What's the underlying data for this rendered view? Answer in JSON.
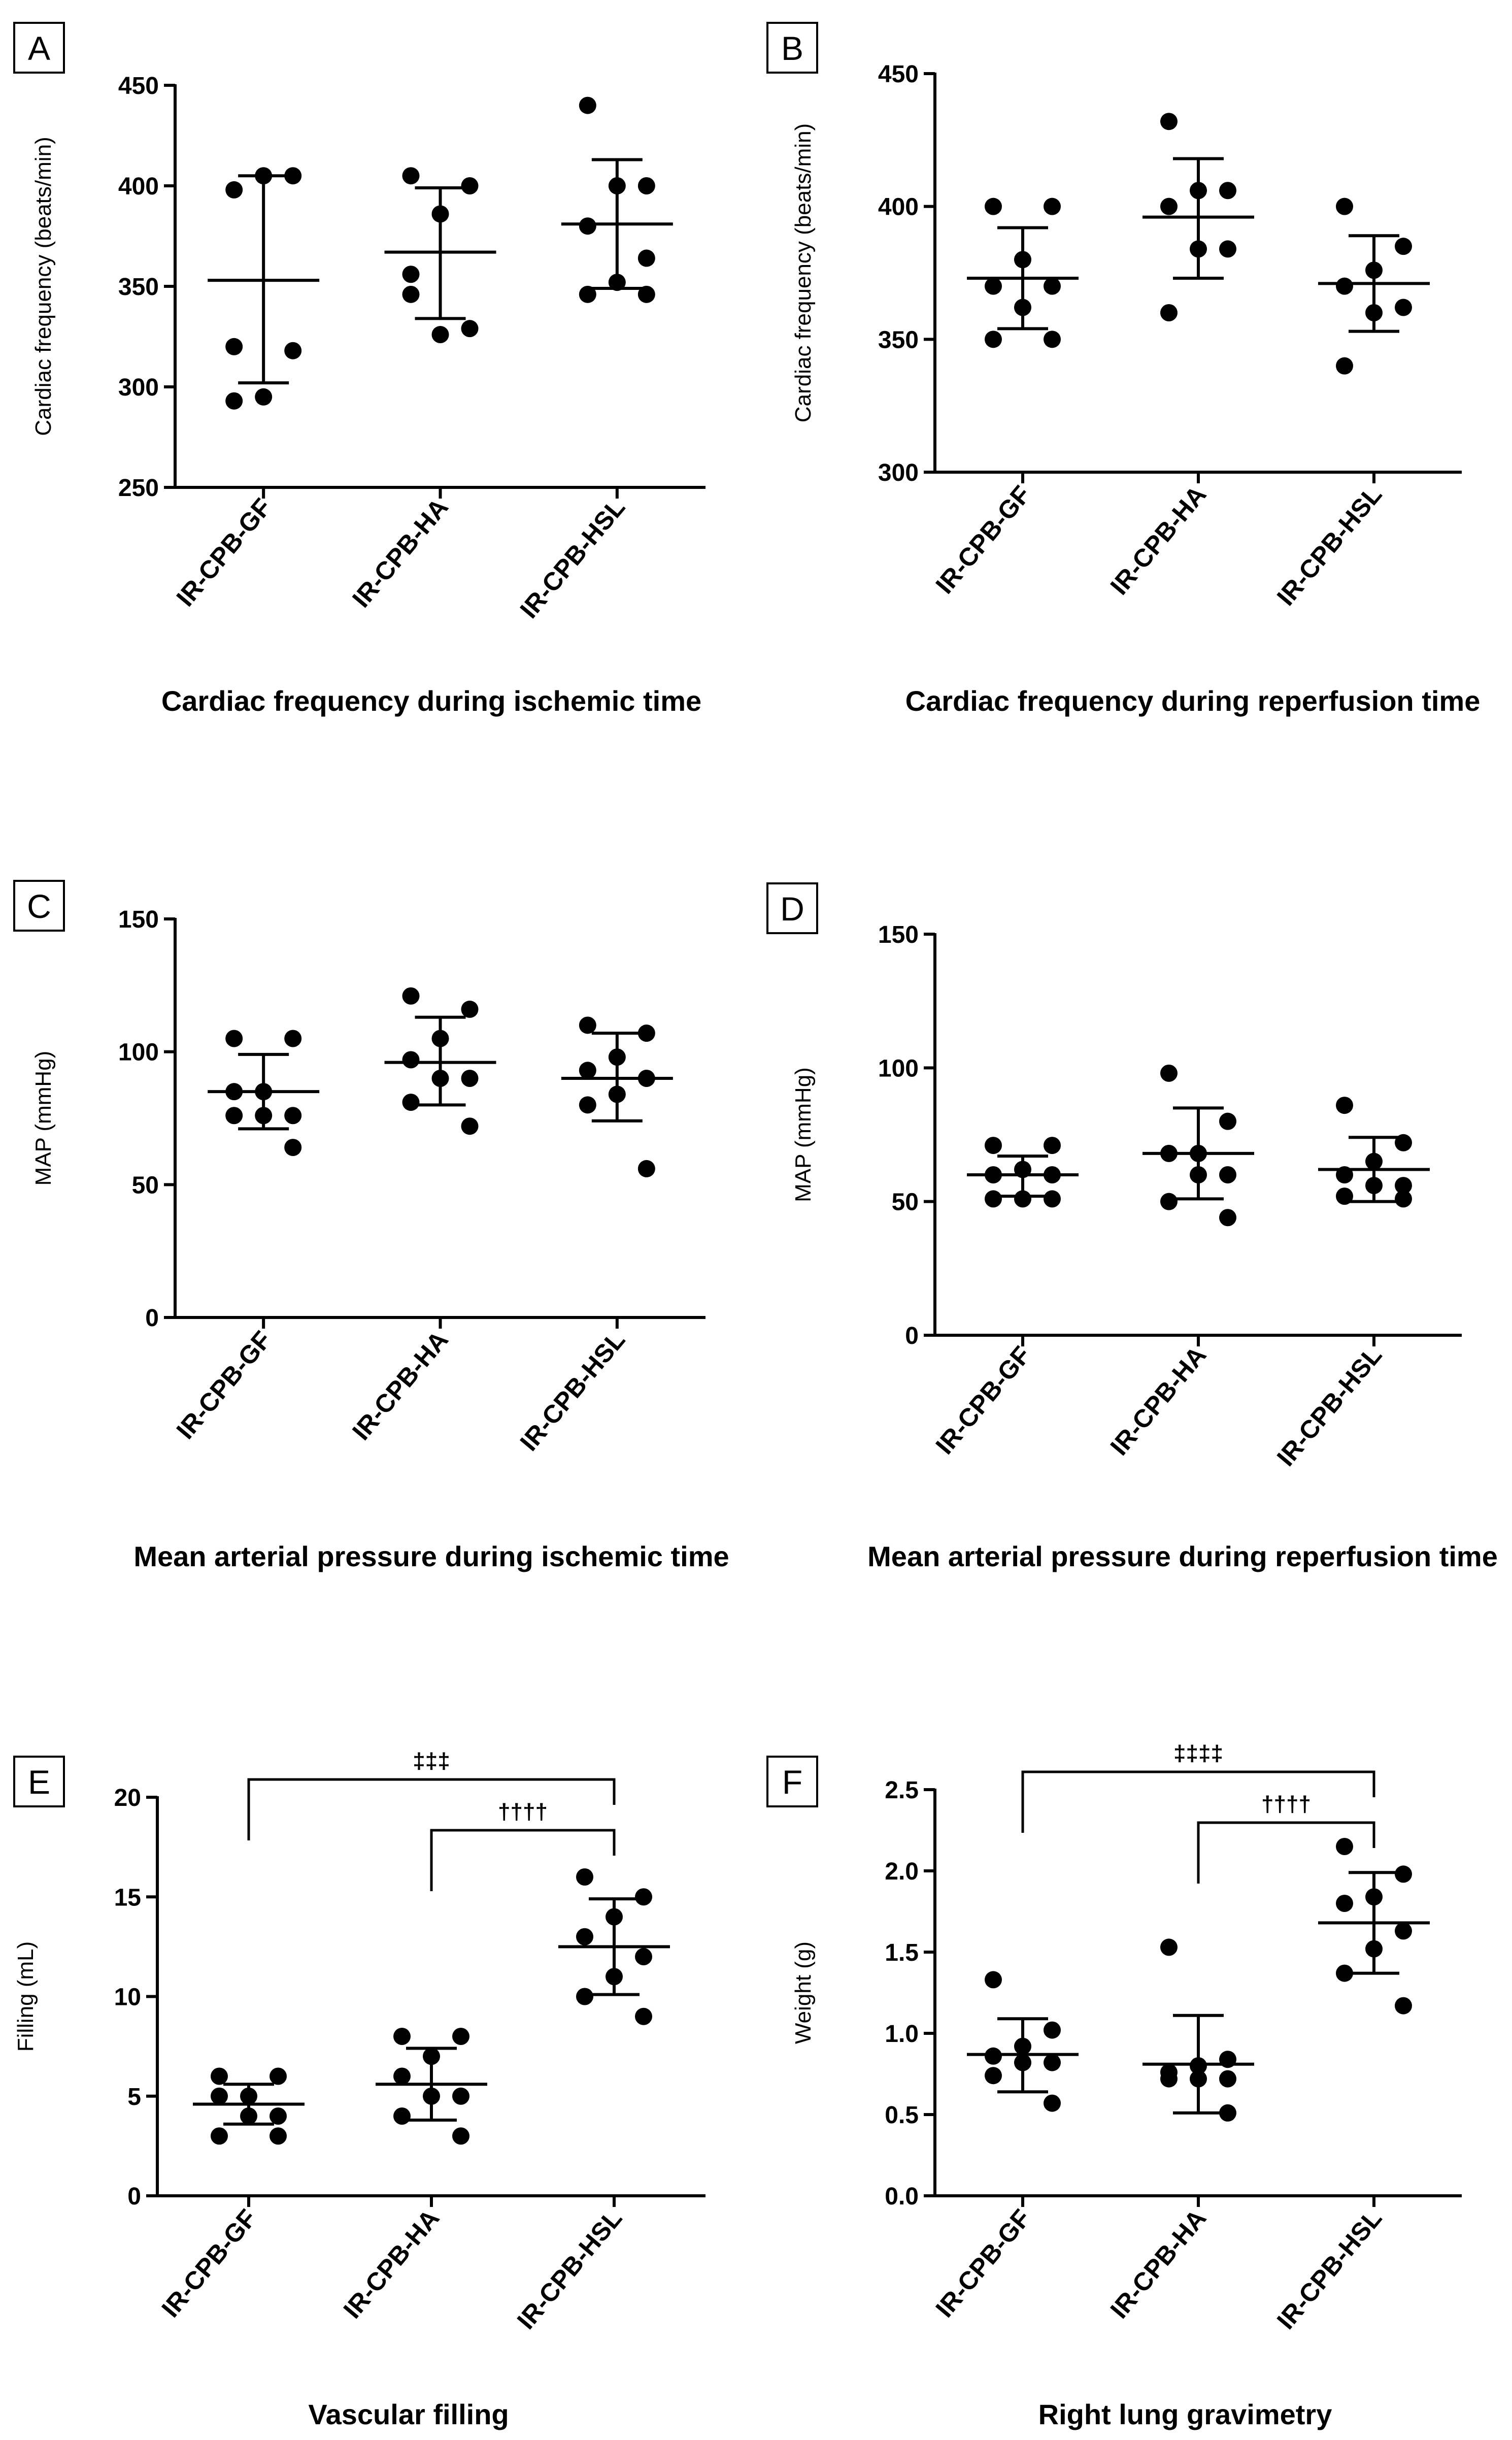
{
  "colors": {
    "ink": "#000000",
    "background": "#ffffff"
  },
  "chart_data": [
    {
      "type": "scatter",
      "panel": "A",
      "ylabel": "Cardiac frequency (beats/min)",
      "xlabel": "Cardiac frequency during ischemic time",
      "ylim": [
        250,
        450
      ],
      "yticks": [
        250,
        300,
        350,
        400,
        450
      ],
      "categories": [
        "IR-CPB-GF",
        "IR-CPB-HA",
        "IR-CPB-HSL"
      ],
      "series": [
        {
          "category": "IR-CPB-GF",
          "points": [
            398,
            405,
            405,
            320,
            318,
            295,
            293
          ],
          "mean": 353,
          "sd_low": 302,
          "sd_high": 405
        },
        {
          "category": "IR-CPB-HA",
          "points": [
            405,
            400,
            386,
            356,
            329,
            326,
            346
          ],
          "mean": 367,
          "sd_low": 334,
          "sd_high": 399
        },
        {
          "category": "IR-CPB-HSL",
          "points": [
            440,
            400,
            400,
            380,
            364,
            352,
            346,
            346
          ],
          "mean": 381,
          "sd_low": 349,
          "sd_high": 413
        }
      ],
      "annotations": []
    },
    {
      "type": "scatter",
      "panel": "B",
      "ylabel": "Cardiac frequency (beats/min)",
      "xlabel": "Cardiac frequency during reperfusion time",
      "ylim": [
        300,
        450
      ],
      "yticks": [
        300,
        350,
        400,
        450
      ],
      "categories": [
        "IR-CPB-GF",
        "IR-CPB-HA",
        "IR-CPB-HSL"
      ],
      "series": [
        {
          "category": "IR-CPB-GF",
          "points": [
            400,
            400,
            380,
            370,
            370,
            362,
            350,
            350
          ],
          "mean": 373,
          "sd_low": 354,
          "sd_high": 392
        },
        {
          "category": "IR-CPB-HA",
          "points": [
            432,
            406,
            406,
            400,
            384,
            384,
            360
          ],
          "mean": 396,
          "sd_low": 373,
          "sd_high": 418
        },
        {
          "category": "IR-CPB-HSL",
          "points": [
            400,
            385,
            376,
            370,
            362,
            360,
            340
          ],
          "mean": 371,
          "sd_low": 353,
          "sd_high": 389
        }
      ],
      "annotations": []
    },
    {
      "type": "scatter",
      "panel": "C",
      "ylabel": "MAP (mmHg)",
      "xlabel": "Mean arterial pressure during ischemic time",
      "ylim": [
        0,
        150
      ],
      "yticks": [
        0,
        50,
        100,
        150
      ],
      "categories": [
        "IR-CPB-GF",
        "IR-CPB-HA",
        "IR-CPB-HSL"
      ],
      "series": [
        {
          "category": "IR-CPB-GF",
          "points": [
            105,
            105,
            85,
            85,
            76,
            76,
            76,
            64
          ],
          "mean": 85,
          "sd_low": 71,
          "sd_high": 99
        },
        {
          "category": "IR-CPB-HA",
          "points": [
            121,
            116,
            105,
            97,
            90,
            90,
            81,
            72
          ],
          "mean": 96,
          "sd_low": 80,
          "sd_high": 113
        },
        {
          "category": "IR-CPB-HSL",
          "points": [
            110,
            107,
            98,
            93,
            90,
            84,
            80,
            56
          ],
          "mean": 90,
          "sd_low": 74,
          "sd_high": 107
        }
      ],
      "annotations": []
    },
    {
      "type": "scatter",
      "panel": "D",
      "ylabel": "MAP (mmHg)",
      "xlabel": "Mean arterial pressure during reperfusion time",
      "ylim": [
        0,
        150
      ],
      "yticks": [
        0,
        50,
        100,
        150
      ],
      "categories": [
        "IR-CPB-GF",
        "IR-CPB-HA",
        "IR-CPB-HSL"
      ],
      "series": [
        {
          "category": "IR-CPB-GF",
          "points": [
            71,
            71,
            62,
            60,
            60,
            51,
            51,
            51
          ],
          "mean": 60,
          "sd_low": 52,
          "sd_high": 67
        },
        {
          "category": "IR-CPB-HA",
          "points": [
            98,
            80,
            68,
            68,
            60,
            60,
            50,
            44
          ],
          "mean": 68,
          "sd_low": 51,
          "sd_high": 85
        },
        {
          "category": "IR-CPB-HSL",
          "points": [
            86,
            72,
            65,
            60,
            56,
            56,
            52,
            51
          ],
          "mean": 62,
          "sd_low": 50,
          "sd_high": 74
        }
      ],
      "annotations": []
    },
    {
      "type": "scatter",
      "panel": "E",
      "ylabel": "Filling (mL)",
      "xlabel": "Vascular filling",
      "ylim": [
        0,
        20
      ],
      "yticks": [
        0,
        5,
        10,
        15,
        20
      ],
      "categories": [
        "IR-CPB-GF",
        "IR-CPB-HA",
        "IR-CPB-HSL"
      ],
      "series": [
        {
          "category": "IR-CPB-GF",
          "points": [
            6,
            6,
            5,
            5,
            4,
            4,
            3,
            3
          ],
          "mean": 4.6,
          "sd_low": 3.6,
          "sd_high": 5.6
        },
        {
          "category": "IR-CPB-HA",
          "points": [
            8,
            8,
            7,
            6,
            5,
            5,
            4,
            3
          ],
          "mean": 5.6,
          "sd_low": 3.8,
          "sd_high": 7.4
        },
        {
          "category": "IR-CPB-HSL",
          "points": [
            16,
            15,
            14,
            13,
            12,
            11,
            10,
            9
          ],
          "mean": 12.5,
          "sd_low": 10.1,
          "sd_high": 14.9
        }
      ],
      "annotations": [
        {
          "text": "‡‡‡",
          "from": 0,
          "to": 2
        },
        {
          "text": "††††",
          "from": 1,
          "to": 2
        }
      ]
    },
    {
      "type": "scatter",
      "panel": "F",
      "ylabel": "Weight (g)",
      "xlabel": "Right lung gravimetry",
      "ylim": [
        0,
        2.5
      ],
      "yticks": [
        0.0,
        0.5,
        1.0,
        1.5,
        2.0,
        2.5
      ],
      "tick_decimals": 1,
      "categories": [
        "IR-CPB-GF",
        "IR-CPB-HA",
        "IR-CPB-HSL"
      ],
      "series": [
        {
          "category": "IR-CPB-GF",
          "points": [
            1.33,
            1.02,
            0.92,
            0.86,
            0.82,
            0.82,
            0.74,
            0.57
          ],
          "mean": 0.87,
          "sd_low": 0.64,
          "sd_high": 1.09
        },
        {
          "category": "IR-CPB-HA",
          "points": [
            1.53,
            0.84,
            0.8,
            0.76,
            0.72,
            0.72,
            0.72,
            0.51
          ],
          "mean": 0.81,
          "sd_low": 0.51,
          "sd_high": 1.11
        },
        {
          "category": "IR-CPB-HSL",
          "points": [
            2.15,
            1.98,
            1.84,
            1.8,
            1.63,
            1.52,
            1.37,
            1.17
          ],
          "mean": 1.68,
          "sd_low": 1.37,
          "sd_high": 1.99
        }
      ],
      "annotations": [
        {
          "text": "‡‡‡‡",
          "from": 0,
          "to": 2
        },
        {
          "text": "††††",
          "from": 1,
          "to": 2
        }
      ]
    }
  ]
}
